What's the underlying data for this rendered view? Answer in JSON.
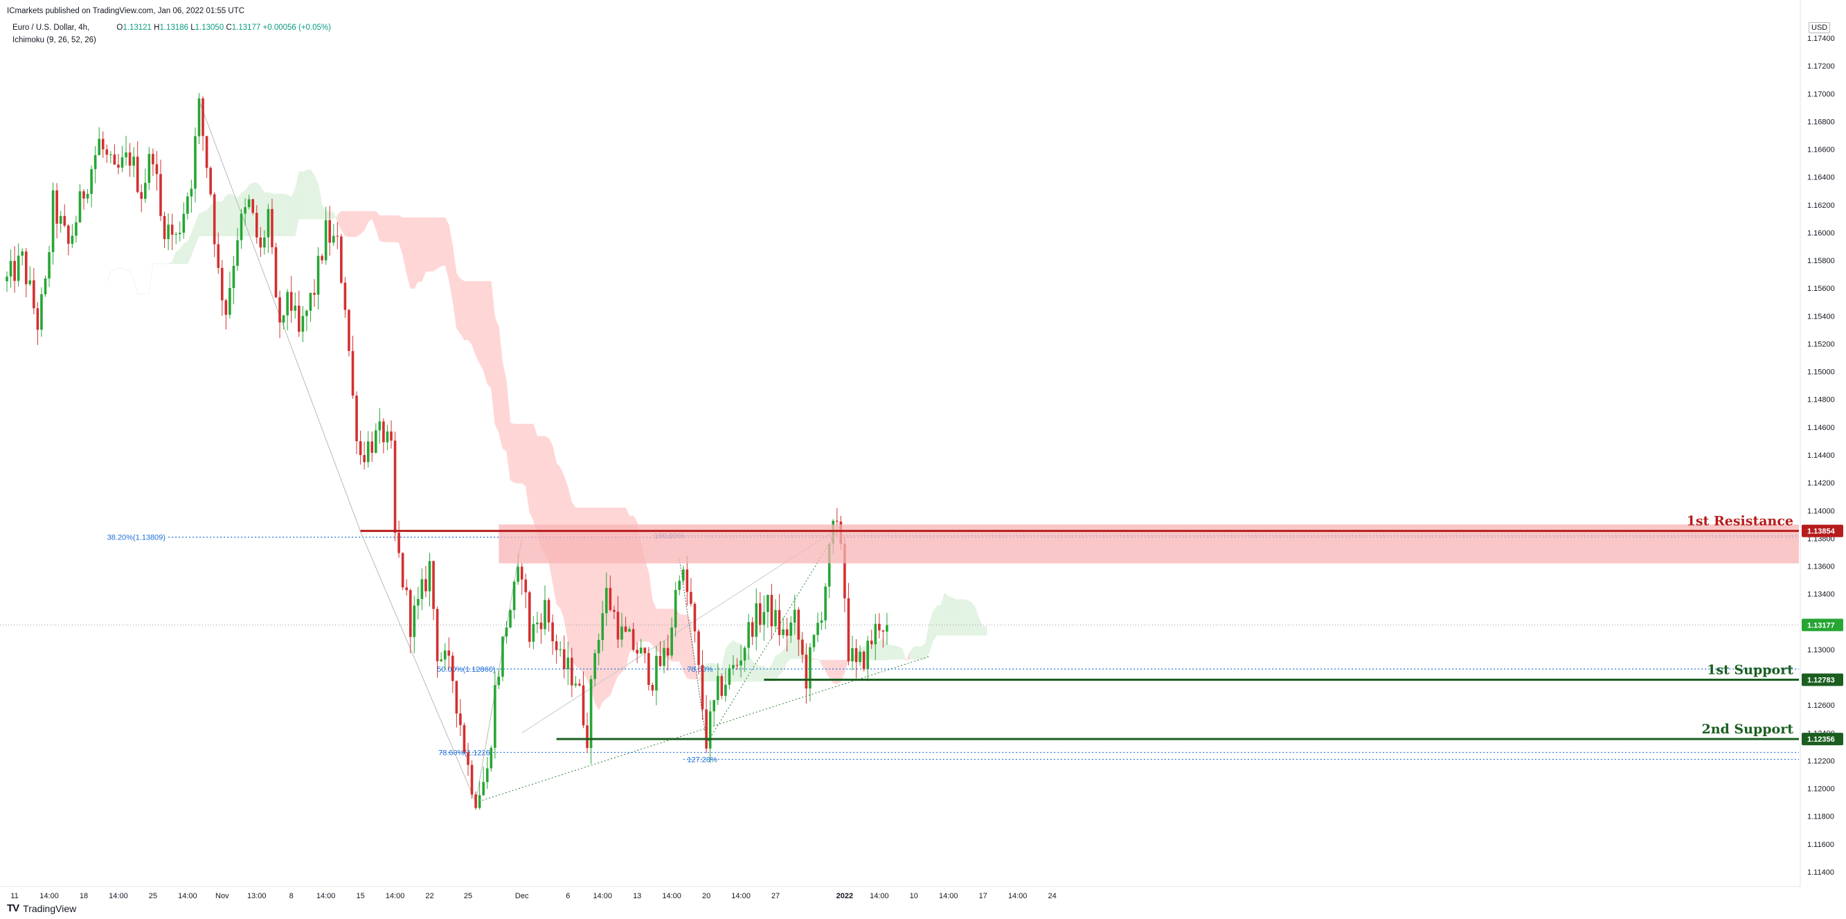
{
  "header": {
    "publisher": "ICmarkets published on TradingView.com, Jan 06, 2022 01:55 UTC",
    "symbol": "Euro / U.S. Dollar, 4h,",
    "indicator": "Ichimoku (9, 26, 52, 26)",
    "ohlc": {
      "o_label": "O",
      "o": "1.13121",
      "h_label": "H",
      "h": "1.13186",
      "l_label": "L",
      "l": "1.13050",
      "c_label": "C",
      "c": "1.13177",
      "change": "+0.00056 (+0.05%)"
    }
  },
  "currency": "USD",
  "brand": {
    "logo": "TV",
    "name": "TradingView"
  },
  "colors": {
    "up": "#089981",
    "down": "#d32f2f",
    "upBody": "#26a634",
    "cloudRed": "#ffd6d6",
    "cloudGreen": "#e3f3e3",
    "resistance": "#b71c1c",
    "support": "#1b5e20",
    "fib": "#1e6fd9"
  },
  "chart_data": {
    "type": "candlestick",
    "y_axis": {
      "range": [
        1.113,
        1.1745
      ],
      "ticks": [
        "1.17400",
        "1.17200",
        "1.17000",
        "1.16800",
        "1.16600",
        "1.16400",
        "1.16200",
        "1.16000",
        "1.15800",
        "1.15600",
        "1.15400",
        "1.15200",
        "1.15000",
        "1.14800",
        "1.14600",
        "1.14400",
        "1.14200",
        "1.14000",
        "1.13800",
        "1.13600",
        "1.13400",
        "1.13200",
        "1.13000",
        "1.12800",
        "1.12600",
        "1.12400",
        "1.12200",
        "1.12000",
        "1.11800",
        "1.11600",
        "1.11400"
      ]
    },
    "x_axis": {
      "labels": [
        {
          "t": "11",
          "bar": 2
        },
        {
          "t": "14:00",
          "bar": 11
        },
        {
          "t": "18",
          "bar": 20
        },
        {
          "t": "14:00",
          "bar": 29
        },
        {
          "t": "25",
          "bar": 38
        },
        {
          "t": "14:00",
          "bar": 47
        },
        {
          "t": "Nov",
          "bar": 56
        },
        {
          "t": "13:00",
          "bar": 65
        },
        {
          "t": "8",
          "bar": 74
        },
        {
          "t": "14:00",
          "bar": 83
        },
        {
          "t": "15",
          "bar": 92
        },
        {
          "t": "14:00",
          "bar": 101
        },
        {
          "t": "22",
          "bar": 110
        },
        {
          "t": "25",
          "bar": 120
        },
        {
          "t": "Dec",
          "bar": 134
        },
        {
          "t": "6",
          "bar": 146
        },
        {
          "t": "14:00",
          "bar": 155
        },
        {
          "t": "13",
          "bar": 164
        },
        {
          "t": "14:00",
          "bar": 173
        },
        {
          "t": "20",
          "bar": 182
        },
        {
          "t": "14:00",
          "bar": 191
        },
        {
          "t": "27",
          "bar": 200
        },
        {
          "t": "2022",
          "bar": 218,
          "bold": true
        },
        {
          "t": "14:00",
          "bar": 227
        },
        {
          "t": "10",
          "bar": 236
        },
        {
          "t": "14:00",
          "bar": 245
        },
        {
          "t": "17",
          "bar": 254
        },
        {
          "t": "14:00",
          "bar": 263
        },
        {
          "t": "24",
          "bar": 272
        }
      ],
      "bar_count_span": 272
    },
    "path_anchors": [
      [
        0,
        1.1565
      ],
      [
        4,
        1.158
      ],
      [
        8,
        1.1535
      ],
      [
        10,
        1.156
      ],
      [
        12,
        1.162
      ],
      [
        16,
        1.159
      ],
      [
        20,
        1.163
      ],
      [
        24,
        1.1665
      ],
      [
        28,
        1.164
      ],
      [
        32,
        1.1655
      ],
      [
        35,
        1.163
      ],
      [
        38,
        1.166
      ],
      [
        40,
        1.161
      ],
      [
        44,
        1.1595
      ],
      [
        48,
        1.164
      ],
      [
        50,
        1.169
      ],
      [
        53,
        1.163
      ],
      [
        55,
        1.157
      ],
      [
        57,
        1.1545
      ],
      [
        60,
        1.16
      ],
      [
        63,
        1.162
      ],
      [
        66,
        1.1585
      ],
      [
        68,
        1.1615
      ],
      [
        70,
        1.1545
      ],
      [
        72,
        1.153
      ],
      [
        73,
        1.156
      ],
      [
        76,
        1.1525
      ],
      [
        80,
        1.156
      ],
      [
        83,
        1.16
      ],
      [
        86,
        1.159
      ],
      [
        88,
        1.155
      ],
      [
        90,
        1.148
      ],
      [
        92,
        1.144
      ],
      [
        95,
        1.145
      ],
      [
        98,
        1.1455
      ],
      [
        100,
        1.144
      ],
      [
        101,
        1.138
      ],
      [
        105,
        1.132
      ],
      [
        107,
        1.133
      ],
      [
        110,
        1.136
      ],
      [
        112,
        1.13
      ],
      [
        116,
        1.128
      ],
      [
        120,
        1.1215
      ],
      [
        122,
        1.1195
      ],
      [
        125,
        1.121
      ],
      [
        127,
        1.127
      ],
      [
        130,
        1.132
      ],
      [
        134,
        1.136
      ],
      [
        136,
        1.131
      ],
      [
        140,
        1.133
      ],
      [
        144,
        1.129
      ],
      [
        148,
        1.128
      ],
      [
        151,
        1.124
      ],
      [
        153,
        1.13
      ],
      [
        156,
        1.134
      ],
      [
        160,
        1.131
      ],
      [
        164,
        1.13
      ],
      [
        168,
        1.128
      ],
      [
        172,
        1.13
      ],
      [
        175,
        1.136
      ],
      [
        178,
        1.133
      ],
      [
        182,
        1.1235
      ],
      [
        185,
        1.127
      ],
      [
        190,
        1.129
      ],
      [
        194,
        1.132
      ],
      [
        198,
        1.133
      ],
      [
        202,
        1.131
      ],
      [
        205,
        1.132
      ],
      [
        208,
        1.128
      ],
      [
        212,
        1.133
      ],
      [
        215,
        1.1385
      ],
      [
        217,
        1.138
      ],
      [
        219,
        1.13
      ],
      [
        221,
        1.1285
      ],
      [
        224,
        1.13
      ],
      [
        227,
        1.132
      ],
      [
        229,
        1.1318
      ]
    ],
    "last_close": 1.13177,
    "levels": [
      {
        "name": "1st Resistance",
        "price": 1.13854,
        "color": "resistance"
      },
      {
        "name": "1st Support",
        "price": 1.12783,
        "color": "support"
      },
      {
        "name": "2nd Support",
        "price": 1.12356,
        "color": "support"
      }
    ],
    "price_tags": [
      "1.13854",
      "1.13177",
      "1.12783",
      "1.12356"
    ],
    "fib_labels": [
      "38.20%(1.13809)",
      "100.00%",
      "50.00%(1.12860)",
      "78.60%",
      "78.60%(1.1226)",
      "127.20%"
    ],
    "resistance_zone": [
      1.1362,
      1.139
    ],
    "grid": false
  }
}
